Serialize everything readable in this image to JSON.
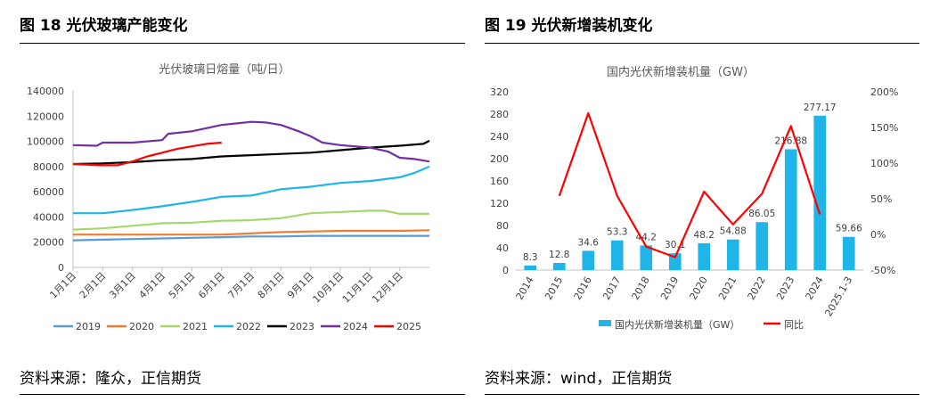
{
  "left": {
    "figure_title": "图 18  光伏玻璃产能变化",
    "source": "资料来源：隆众，正信期货"
  },
  "right": {
    "figure_title": "图 19  光伏新增装机变化",
    "source": "资料来源：wind，正信期货"
  },
  "chart_data": [
    {
      "type": "line",
      "title": "光伏玻璃日熔量（吨/日）",
      "x_categories": [
        "1月1日",
        "2月1日",
        "3月1日",
        "4月1日",
        "5月1日",
        "6月1日",
        "7月1日",
        "8月1日",
        "9月1日",
        "10月1日",
        "11月1日",
        "12月1日"
      ],
      "ylim": [
        0,
        140000
      ],
      "y_ticks": [
        "0",
        "20000",
        "40000",
        "60000",
        "80000",
        "100000",
        "120000",
        "140000"
      ],
      "legend_position": "bottom",
      "series": [
        {
          "name": "2019",
          "color": "#5b9bd5",
          "x": [
            0,
            1,
            2,
            3,
            4,
            5,
            6,
            7,
            8,
            9,
            10,
            11,
            12
          ],
          "values": [
            21500,
            22000,
            22500,
            23000,
            23500,
            24000,
            24500,
            24500,
            25000,
            25000,
            25000,
            25000,
            25000
          ]
        },
        {
          "name": "2020",
          "color": "#ed7d31",
          "x": [
            0,
            1,
            2,
            3,
            4,
            5,
            6,
            7,
            8,
            9,
            10,
            11,
            12
          ],
          "values": [
            26000,
            26000,
            26000,
            26000,
            26000,
            26000,
            27000,
            28000,
            28500,
            29000,
            29000,
            29000,
            29500
          ]
        },
        {
          "name": "2021",
          "color": "#a5d86c",
          "x": [
            0,
            1,
            2,
            3,
            4,
            5,
            6,
            7,
            8,
            9,
            10,
            10.5,
            11,
            12
          ],
          "values": [
            30000,
            31000,
            33000,
            35000,
            35500,
            37000,
            37500,
            39000,
            43000,
            44000,
            45000,
            45000,
            42500,
            42500
          ]
        },
        {
          "name": "2022",
          "color": "#1fb5e9",
          "x": [
            0,
            1,
            2,
            3,
            4,
            5,
            6,
            7,
            8,
            9,
            10,
            11,
            11.5,
            12
          ],
          "values": [
            43000,
            43000,
            45500,
            48500,
            52000,
            56000,
            57000,
            62000,
            64000,
            67000,
            68500,
            71500,
            75000,
            80000
          ]
        },
        {
          "name": "2023",
          "color": "#000000",
          "x": [
            0,
            1,
            2,
            3,
            4,
            5,
            6,
            7,
            8,
            9,
            10,
            11,
            11.8,
            12
          ],
          "values": [
            82000,
            82500,
            83500,
            85000,
            86000,
            88000,
            89000,
            90000,
            91000,
            93000,
            95000,
            96500,
            98000,
            100500
          ]
        },
        {
          "name": "2024",
          "color": "#7030a0",
          "x": [
            0,
            0.8,
            1,
            2,
            3,
            3.2,
            4,
            5,
            6,
            6.5,
            7,
            7.6,
            8,
            8.4,
            9,
            10,
            10.6,
            11,
            11.5,
            12
          ],
          "values": [
            97000,
            96500,
            99000,
            99000,
            101000,
            106000,
            108000,
            113000,
            115500,
            115000,
            113000,
            108000,
            104000,
            99000,
            97000,
            95000,
            92000,
            87000,
            86000,
            84000
          ]
        },
        {
          "name": "2025",
          "color": "#ff0000",
          "x": [
            0,
            0.9,
            1.5,
            2,
            2.5,
            3,
            3.5,
            4,
            4.5,
            5
          ],
          "values": [
            82000,
            81000,
            81000,
            84000,
            88000,
            91000,
            94000,
            96000,
            98000,
            99000
          ]
        }
      ]
    },
    {
      "type": "bar+line",
      "title": "国内光伏新增装机量（GW）",
      "categories": [
        "2014",
        "2015",
        "2016",
        "2017",
        "2018",
        "2019",
        "2020",
        "2021",
        "2022",
        "2023",
        "2024",
        "2025.1-3"
      ],
      "ylim_left": [
        0,
        320
      ],
      "y_ticks_left": [
        "0",
        "40",
        "80",
        "120",
        "160",
        "200",
        "240",
        "280",
        "320"
      ],
      "ylim_right": [
        -0.5,
        2.0
      ],
      "y_ticks_right": [
        "-50%",
        "0%",
        "50%",
        "100%",
        "150%",
        "200%"
      ],
      "legend_position": "bottom",
      "series": [
        {
          "name": "国内光伏新增装机量（GW）",
          "type": "bar",
          "color": "#1fb5e9",
          "values": [
            8.3,
            12.8,
            34.6,
            53.3,
            44.2,
            30.1,
            48.2,
            54.88,
            86.05,
            216.88,
            277.17,
            59.66
          ],
          "labels": [
            "8.3",
            "12.8",
            "34.6",
            "53.3",
            "44.2",
            "30.1",
            "48.2",
            "54.88",
            "86.05",
            "216.88",
            "277.17",
            "59.66"
          ]
        },
        {
          "name": "同比",
          "type": "line",
          "axis": "right",
          "color": "#ff0000",
          "values": [
            null,
            0.54,
            1.7,
            0.54,
            -0.17,
            -0.32,
            0.6,
            0.14,
            0.57,
            1.52,
            0.28,
            null
          ]
        }
      ]
    }
  ]
}
